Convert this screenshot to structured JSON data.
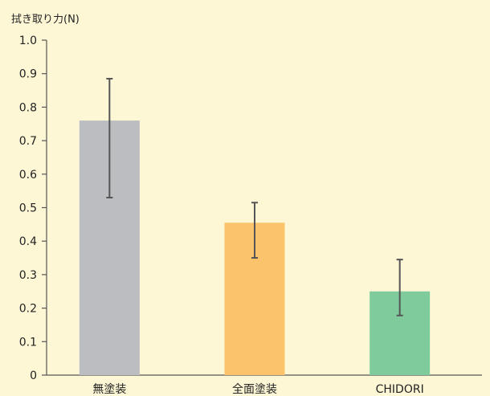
{
  "chart_data": {
    "type": "bar",
    "title": "",
    "ylabel": "拭き取り力(N)",
    "xlabel": "",
    "categories": [
      "無塗装",
      "全面塗装",
      "CHIDORI"
    ],
    "values": [
      0.76,
      0.455,
      0.25
    ],
    "error_low": [
      0.53,
      0.35,
      0.178
    ],
    "error_high": [
      0.885,
      0.515,
      0.345
    ],
    "colors": [
      "#bcbdc0",
      "#fbc46c",
      "#80cb9c"
    ],
    "ylim": [
      0,
      1.0
    ],
    "yticks": [
      "0",
      "0.1",
      "0.2",
      "0.3",
      "0.4",
      "0.5",
      "0.6",
      "0.7",
      "0.8",
      "0.9",
      "1.0"
    ],
    "grid": false,
    "legend": "none"
  },
  "colors": {
    "background": "#fdf7d6",
    "axis": "#555555",
    "error_bar": "#555555"
  }
}
